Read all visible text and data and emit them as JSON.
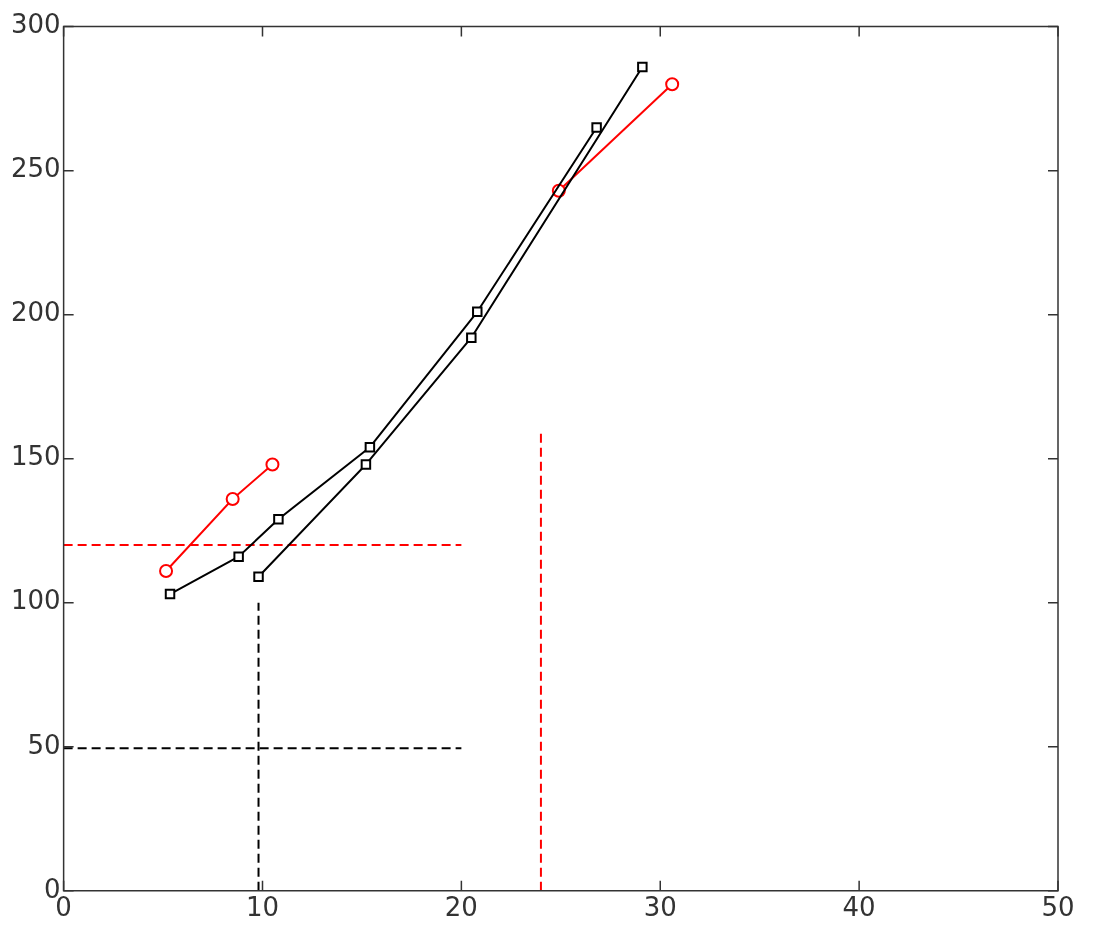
{
  "chart_data": {
    "type": "scatter",
    "xlim": [
      0,
      50
    ],
    "ylim": [
      0,
      300
    ],
    "xticks": [
      0,
      10,
      20,
      30,
      40,
      50
    ],
    "yticks": [
      0,
      50,
      100,
      150,
      200,
      250,
      300
    ],
    "grid": false,
    "legend": false,
    "series": [
      {
        "type": "line",
        "color": "#ff0000",
        "marker": "circle",
        "line_style": "solid",
        "x": [
          5.15,
          8.5,
          10.5
        ],
        "values": [
          111,
          136,
          148
        ]
      },
      {
        "type": "line",
        "color": "#000000",
        "marker": "square",
        "line_style": "solid",
        "x": [
          5.35,
          8.8,
          10.8,
          15.4,
          20.8,
          26.8
        ],
        "values": [
          103,
          116,
          129,
          154,
          201,
          265
        ]
      },
      {
        "type": "line",
        "color": "#000000",
        "marker": "square",
        "line_style": "solid",
        "x": [
          9.8,
          15.2,
          20.5,
          29.1
        ],
        "values": [
          109,
          148,
          192,
          286
        ]
      },
      {
        "type": "line",
        "color": "#ff0000",
        "marker": "circle",
        "line_style": "solid",
        "x": [
          24.9,
          30.6
        ],
        "values": [
          243,
          280
        ]
      },
      {
        "type": "line",
        "color": "#ff0000",
        "marker": "none",
        "line_style": "dashed",
        "x": [
          0,
          20
        ],
        "values": [
          120,
          120
        ]
      },
      {
        "type": "line",
        "color": "#000000",
        "marker": "none",
        "line_style": "dashed",
        "x": [
          0,
          20
        ],
        "values": [
          49.5,
          49.5
        ]
      },
      {
        "type": "line",
        "color": "#000000",
        "marker": "none",
        "line_style": "dashed",
        "x": [
          9.8,
          9.8
        ],
        "values": [
          0,
          100
        ]
      },
      {
        "type": "line",
        "color": "#ff0000",
        "marker": "none",
        "line_style": "dashed",
        "x": [
          24,
          24
        ],
        "values": [
          0,
          160
        ]
      }
    ]
  }
}
